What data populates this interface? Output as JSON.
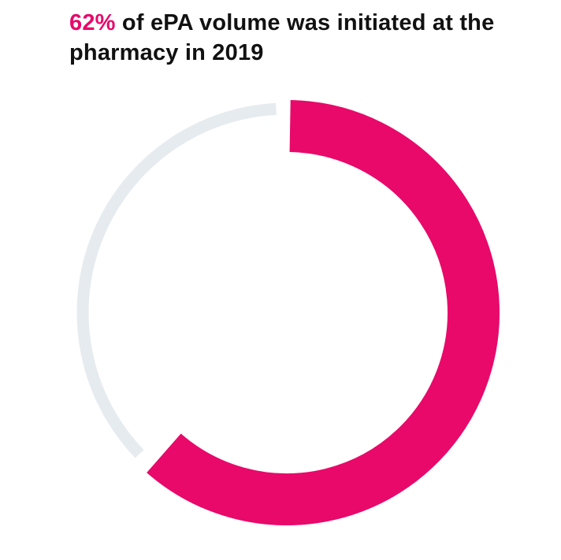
{
  "title": {
    "highlight": "62%",
    "rest": " of ePA volume was initiated at the pharmacy in 2019"
  },
  "chart_data": {
    "type": "pie",
    "title": "62% of ePA volume was initiated at the pharmacy in 2019",
    "style": "donut",
    "slices": [
      {
        "label": "",
        "value": 62,
        "color": "#e8096a"
      },
      {
        "label": "",
        "value": 38,
        "color": "#e6ebef"
      }
    ],
    "start": "top",
    "direction": "clockwise"
  }
}
